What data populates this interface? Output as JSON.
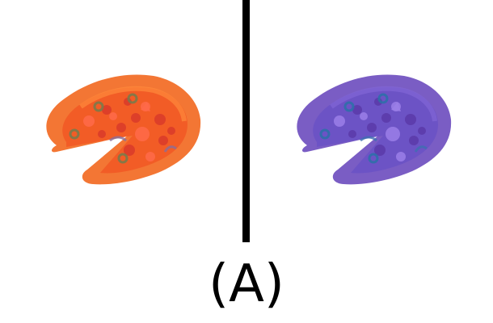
{
  "figure": {
    "caption": "(A)",
    "left_panel": {
      "name": "orange-pizza",
      "colors": {
        "crust_outer": "#f26a23",
        "crust_inner": "#ff8a3c",
        "base": "#f25a25",
        "topping": "#d93a2a",
        "topping_light": "#ff6a4a",
        "accent": "#8a6e9a",
        "olive": "#7a7a4a"
      }
    },
    "right_panel": {
      "name": "purple-pizza",
      "colors": {
        "crust_outer": "#6f4fbf",
        "crust_inner": "#8266d6",
        "base": "#6a52c5",
        "topping": "#5a3aa8",
        "topping_light": "#9b7fe8",
        "accent": "#3f6fb0",
        "olive": "#2f6fa8"
      }
    },
    "divider_color": "#000000"
  }
}
